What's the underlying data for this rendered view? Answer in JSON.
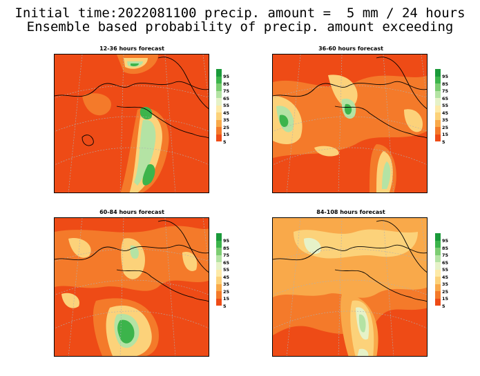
{
  "header": {
    "line1": "Initial time:2022081100 precip. amount =  5 mm / 24 hours",
    "line2": "Ensemble based probability of precip. amount exceeding"
  },
  "panels": [
    {
      "title": "12-36 hours forecast"
    },
    {
      "title": "36-60 hours forecast"
    },
    {
      "title": "60-84 hours forecast"
    },
    {
      "title": "84-108 hours forecast"
    }
  ],
  "colorbar": {
    "labels": [
      "95",
      "85",
      "75",
      "65",
      "55",
      "45",
      "35",
      "25",
      "15",
      "5"
    ],
    "colors": [
      "#1a9a3a",
      "#3cb44b",
      "#7ccd72",
      "#b4e3a4",
      "#e6f2c8",
      "#fdeaa8",
      "#fcd27a",
      "#f9a94a",
      "#f47a2a",
      "#ee4b16"
    ]
  },
  "colors": {
    "background_field": "#ee4b16",
    "grid": "#b0b0b0",
    "coast": "#000000"
  }
}
